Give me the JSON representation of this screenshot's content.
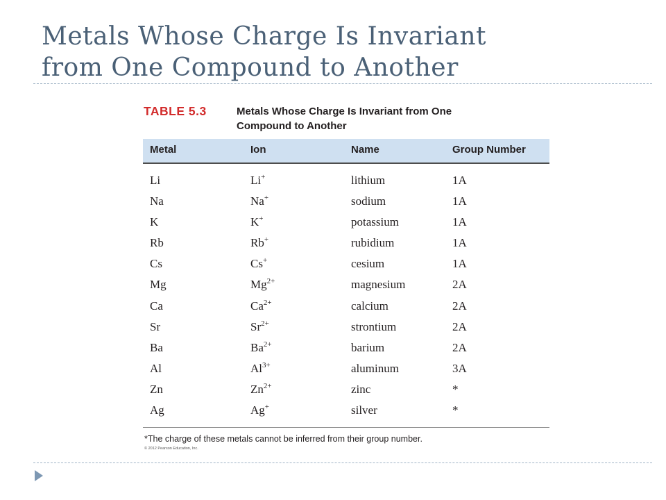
{
  "slide": {
    "title_line1": "Metals Whose Charge Is Invariant",
    "title_line2": "from One Compound to Another"
  },
  "table": {
    "number": "TABLE 5.3",
    "caption_line1": "Metals Whose Charge Is Invariant from One",
    "caption_line2": "Compound to Another",
    "headers": [
      "Metal",
      "Ion",
      "Name",
      "Group Number"
    ],
    "rows": [
      {
        "metal": "Li",
        "ion_symbol": "Li",
        "ion_charge": "+",
        "name": "lithium",
        "group": "1A"
      },
      {
        "metal": "Na",
        "ion_symbol": "Na",
        "ion_charge": "+",
        "name": "sodium",
        "group": "1A"
      },
      {
        "metal": "K",
        "ion_symbol": "K",
        "ion_charge": "+",
        "name": "potassium",
        "group": "1A"
      },
      {
        "metal": "Rb",
        "ion_symbol": "Rb",
        "ion_charge": "+",
        "name": "rubidium",
        "group": "1A"
      },
      {
        "metal": "Cs",
        "ion_symbol": "Cs",
        "ion_charge": "+",
        "name": "cesium",
        "group": "1A"
      },
      {
        "metal": "Mg",
        "ion_symbol": "Mg",
        "ion_charge": "2+",
        "name": "magnesium",
        "group": "2A"
      },
      {
        "metal": "Ca",
        "ion_symbol": "Ca",
        "ion_charge": "2+",
        "name": "calcium",
        "group": "2A"
      },
      {
        "metal": "Sr",
        "ion_symbol": "Sr",
        "ion_charge": "2+",
        "name": "strontium",
        "group": "2A"
      },
      {
        "metal": "Ba",
        "ion_symbol": "Ba",
        "ion_charge": "2+",
        "name": "barium",
        "group": "2A"
      },
      {
        "metal": "Al",
        "ion_symbol": "Al",
        "ion_charge": "3+",
        "name": "aluminum",
        "group": "3A"
      },
      {
        "metal": "Zn",
        "ion_symbol": "Zn",
        "ion_charge": "2+",
        "name": "zinc",
        "group": "*"
      },
      {
        "metal": "Ag",
        "ion_symbol": "Ag",
        "ion_charge": "+",
        "name": "silver",
        "group": "*"
      }
    ],
    "footnote": "*The charge of these metals cannot be inferred from their group number.",
    "copyright": "© 2012 Pearson Education, Inc."
  },
  "colors": {
    "title": "#4a6076",
    "table_number": "#d22b2b",
    "header_fill": "#cfe0f1",
    "divider": "#9fb3c5",
    "nav_arrow": "#7d98b3"
  },
  "icons": {
    "nav": "play-arrow-icon"
  }
}
